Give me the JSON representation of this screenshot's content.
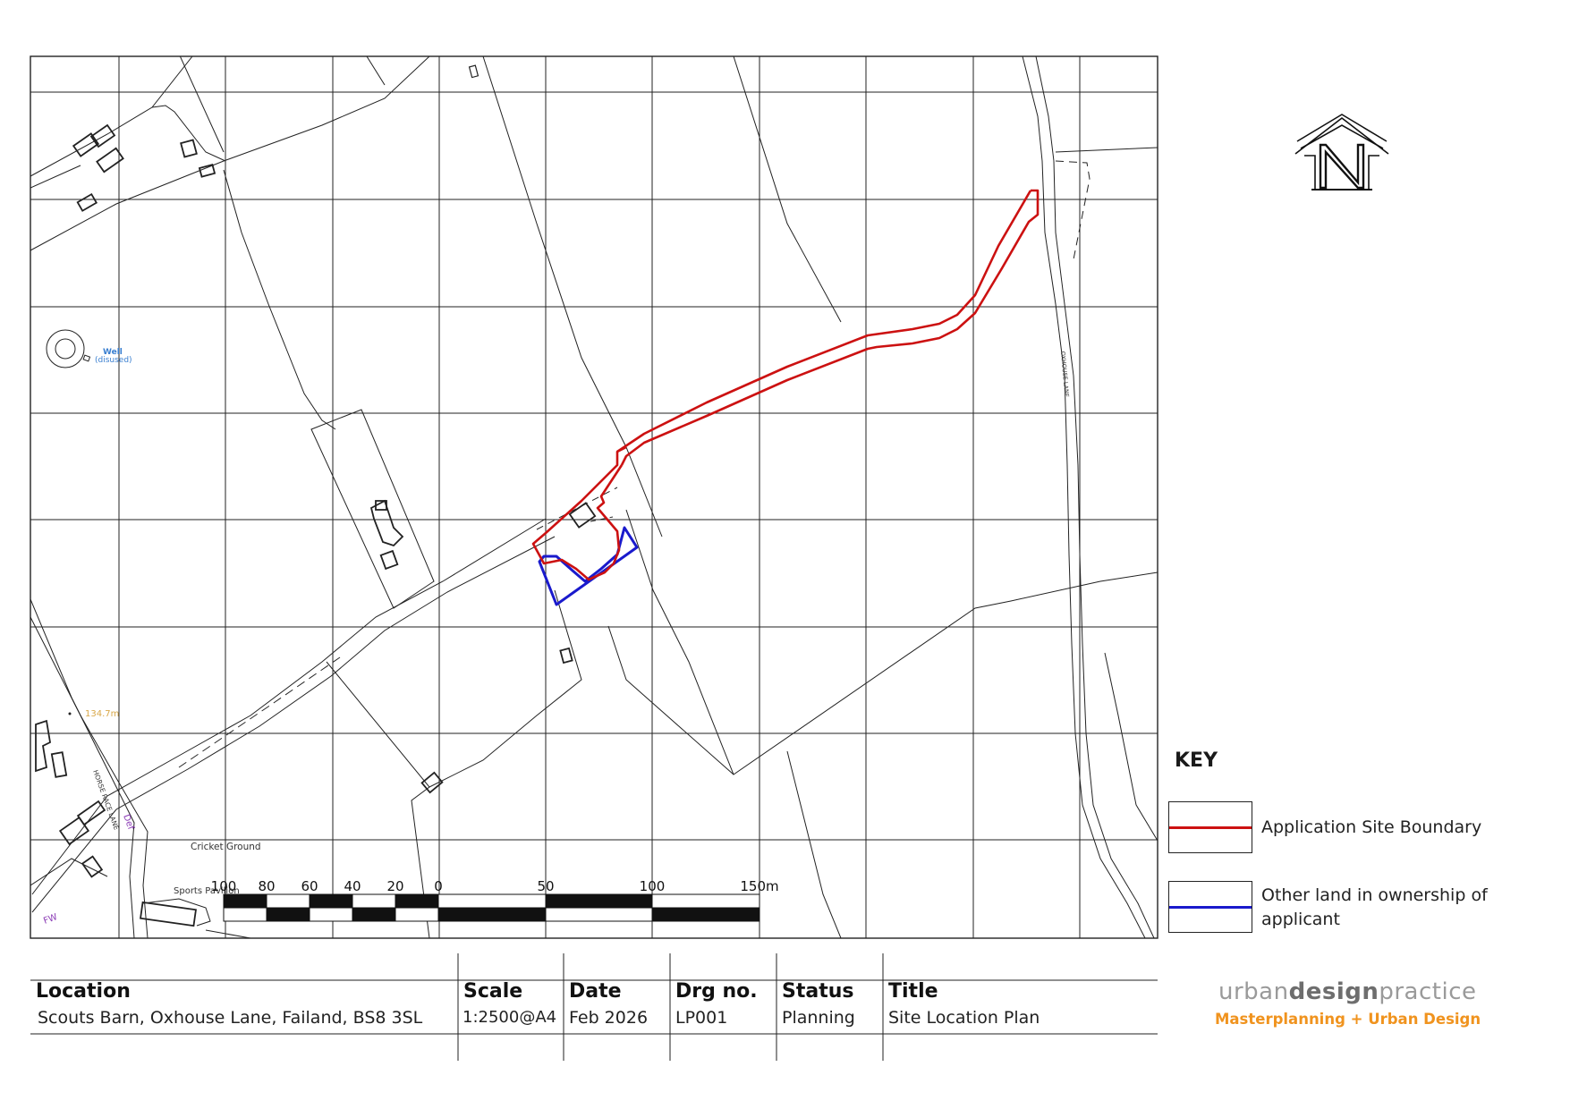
{
  "map": {
    "labels": {
      "well": "Well",
      "well_sub": "(disused)",
      "spot_height": "134.7m",
      "lane_left": "HORSE RACE LANE",
      "lane_right": "OXHOUSE LANE",
      "cricket_ground": "Cricket Ground",
      "sports_pavilion": "Sports Pavilion",
      "def": "Def",
      "fw": "FW"
    },
    "scale_bar_ticks": [
      "100",
      "80",
      "60",
      "40",
      "20",
      "0",
      "50",
      "100",
      "150m"
    ],
    "colors": {
      "application_boundary": "#cc1111",
      "other_land": "#1a1acc",
      "label_blue": "#3a7fd0",
      "label_purple": "#8a3ab5",
      "label_orange": "#d9a84a"
    },
    "north_arrow_icon": "north-arrow-icon"
  },
  "key": {
    "title": "KEY",
    "items": [
      {
        "label": "Application Site Boundary",
        "color": "#cc1111"
      },
      {
        "label": "Other land in ownership of applicant",
        "color": "#1a1acc"
      }
    ]
  },
  "title_block": {
    "location": {
      "label": "Location",
      "value": "Scouts Barn, Oxhouse Lane, Failand, BS8 3SL"
    },
    "scale": {
      "label": "Scale",
      "value": "1:2500@A4"
    },
    "date": {
      "label": "Date",
      "value": "Feb 2026"
    },
    "drawing_no": {
      "label": "Drg no.",
      "value": "LP001"
    },
    "status": {
      "label": "Status",
      "value": "Planning"
    },
    "title": {
      "label": "Title",
      "value": "Site Location Plan"
    }
  },
  "branding": {
    "name_light_1": "urban",
    "name_bold": "design",
    "name_light_2": "practice",
    "tagline": "Masterplanning + Urban Design"
  }
}
